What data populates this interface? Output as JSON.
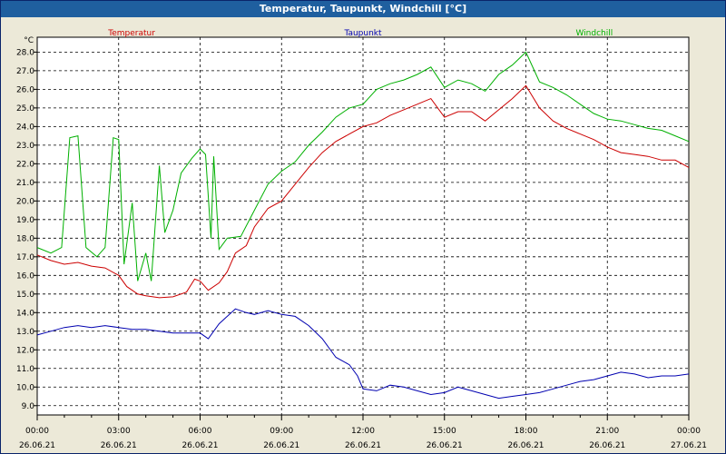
{
  "window": {
    "title": "Temperatur, Taupunkt, Windchill [°C]"
  },
  "chart_data": {
    "type": "line",
    "title": "Temperatur, Taupunkt, Windchill [°C]",
    "ylabel": "°C",
    "ylim": [
      8.5,
      28.8
    ],
    "yticks": [
      9.0,
      10.0,
      11.0,
      12.0,
      13.0,
      14.0,
      15.0,
      16.0,
      17.0,
      18.0,
      19.0,
      20.0,
      21.0,
      22.0,
      23.0,
      24.0,
      25.0,
      26.0,
      27.0,
      28.0
    ],
    "xlim": [
      0,
      24
    ],
    "xticks": [
      {
        "x": 0,
        "time": "00:00",
        "date": "26.06.21"
      },
      {
        "x": 3,
        "time": "03:00",
        "date": "26.06.21"
      },
      {
        "x": 6,
        "time": "06:00",
        "date": "26.06.21"
      },
      {
        "x": 9,
        "time": "09:00",
        "date": "26.06.21"
      },
      {
        "x": 12,
        "time": "12:00",
        "date": "26.06.21"
      },
      {
        "x": 15,
        "time": "15:00",
        "date": "26.06.21"
      },
      {
        "x": 18,
        "time": "18:00",
        "date": "26.06.21"
      },
      {
        "x": 21,
        "time": "21:00",
        "date": "26.06.21"
      },
      {
        "x": 24,
        "time": "00:00",
        "date": "27.06.21"
      }
    ],
    "grid": true,
    "legend": "top",
    "series": [
      {
        "name": "Temperatur",
        "color": "#cc0000",
        "points": [
          [
            0,
            17.1
          ],
          [
            0.5,
            16.8
          ],
          [
            1,
            16.6
          ],
          [
            1.5,
            16.7
          ],
          [
            2,
            16.5
          ],
          [
            2.5,
            16.4
          ],
          [
            3,
            16.0
          ],
          [
            3.3,
            15.4
          ],
          [
            3.7,
            15.0
          ],
          [
            4,
            14.9
          ],
          [
            4.5,
            14.8
          ],
          [
            5,
            14.85
          ],
          [
            5.5,
            15.1
          ],
          [
            5.8,
            15.8
          ],
          [
            6,
            15.7
          ],
          [
            6.3,
            15.2
          ],
          [
            6.7,
            15.6
          ],
          [
            7,
            16.2
          ],
          [
            7.3,
            17.2
          ],
          [
            7.7,
            17.6
          ],
          [
            8,
            18.6
          ],
          [
            8.5,
            19.6
          ],
          [
            9,
            20.0
          ],
          [
            9.5,
            20.9
          ],
          [
            10,
            21.8
          ],
          [
            10.5,
            22.6
          ],
          [
            11,
            23.2
          ],
          [
            11.5,
            23.6
          ],
          [
            12,
            24.0
          ],
          [
            12.5,
            24.2
          ],
          [
            13,
            24.6
          ],
          [
            13.5,
            24.9
          ],
          [
            14,
            25.2
          ],
          [
            14.5,
            25.5
          ],
          [
            15,
            24.5
          ],
          [
            15.5,
            24.8
          ],
          [
            16,
            24.8
          ],
          [
            16.5,
            24.3
          ],
          [
            17,
            24.9
          ],
          [
            17.5,
            25.5
          ],
          [
            18,
            26.2
          ],
          [
            18.5,
            25.0
          ],
          [
            19,
            24.3
          ],
          [
            19.5,
            23.9
          ],
          [
            20,
            23.6
          ],
          [
            20.5,
            23.3
          ],
          [
            21,
            22.9
          ],
          [
            21.5,
            22.6
          ],
          [
            22,
            22.5
          ],
          [
            22.5,
            22.4
          ],
          [
            23,
            22.2
          ],
          [
            23.5,
            22.2
          ],
          [
            24,
            21.8
          ]
        ]
      },
      {
        "name": "Taupunkt",
        "color": "#0000b0",
        "points": [
          [
            0,
            12.8
          ],
          [
            0.5,
            13.0
          ],
          [
            1,
            13.2
          ],
          [
            1.5,
            13.3
          ],
          [
            2,
            13.2
          ],
          [
            2.5,
            13.3
          ],
          [
            3,
            13.2
          ],
          [
            3.5,
            13.1
          ],
          [
            4,
            13.1
          ],
          [
            4.5,
            13.0
          ],
          [
            5,
            12.9
          ],
          [
            5.5,
            12.9
          ],
          [
            6,
            12.9
          ],
          [
            6.3,
            12.6
          ],
          [
            6.7,
            13.4
          ],
          [
            7,
            13.8
          ],
          [
            7.3,
            14.2
          ],
          [
            7.7,
            14.0
          ],
          [
            8,
            13.9
          ],
          [
            8.5,
            14.1
          ],
          [
            9,
            13.9
          ],
          [
            9.5,
            13.8
          ],
          [
            10,
            13.3
          ],
          [
            10.5,
            12.6
          ],
          [
            11,
            11.6
          ],
          [
            11.5,
            11.2
          ],
          [
            11.8,
            10.6
          ],
          [
            12,
            9.9
          ],
          [
            12.5,
            9.8
          ],
          [
            13,
            10.1
          ],
          [
            13.5,
            10.0
          ],
          [
            14,
            9.8
          ],
          [
            14.5,
            9.6
          ],
          [
            15,
            9.7
          ],
          [
            15.5,
            10.0
          ],
          [
            16,
            9.8
          ],
          [
            16.5,
            9.6
          ],
          [
            17,
            9.4
          ],
          [
            17.5,
            9.5
          ],
          [
            18,
            9.6
          ],
          [
            18.5,
            9.7
          ],
          [
            19,
            9.9
          ],
          [
            19.5,
            10.1
          ],
          [
            20,
            10.3
          ],
          [
            20.5,
            10.4
          ],
          [
            21,
            10.6
          ],
          [
            21.5,
            10.8
          ],
          [
            22,
            10.7
          ],
          [
            22.5,
            10.5
          ],
          [
            23,
            10.6
          ],
          [
            23.5,
            10.6
          ],
          [
            24,
            10.7
          ]
        ]
      },
      {
        "name": "Windchill",
        "color": "#00b000",
        "points": [
          [
            0,
            17.5
          ],
          [
            0.5,
            17.2
          ],
          [
            0.9,
            17.5
          ],
          [
            1.2,
            23.4
          ],
          [
            1.5,
            23.5
          ],
          [
            1.8,
            17.5
          ],
          [
            2.2,
            17.0
          ],
          [
            2.5,
            17.5
          ],
          [
            2.8,
            23.4
          ],
          [
            3,
            23.3
          ],
          [
            3.2,
            16.6
          ],
          [
            3.5,
            19.9
          ],
          [
            3.7,
            15.7
          ],
          [
            4,
            17.2
          ],
          [
            4.2,
            15.7
          ],
          [
            4.5,
            21.9
          ],
          [
            4.7,
            18.3
          ],
          [
            5,
            19.5
          ],
          [
            5.3,
            21.5
          ],
          [
            5.7,
            22.3
          ],
          [
            6,
            22.8
          ],
          [
            6.2,
            22.5
          ],
          [
            6.4,
            18.0
          ],
          [
            6.5,
            22.4
          ],
          [
            6.7,
            17.4
          ],
          [
            7,
            18.0
          ],
          [
            7.5,
            18.1
          ],
          [
            8,
            19.5
          ],
          [
            8.5,
            20.9
          ],
          [
            9,
            21.6
          ],
          [
            9.5,
            22.1
          ],
          [
            10,
            23.0
          ],
          [
            10.5,
            23.7
          ],
          [
            11,
            24.5
          ],
          [
            11.5,
            25.0
          ],
          [
            12,
            25.2
          ],
          [
            12.5,
            26.0
          ],
          [
            13,
            26.3
          ],
          [
            13.5,
            26.5
          ],
          [
            14,
            26.8
          ],
          [
            14.5,
            27.2
          ],
          [
            15,
            26.1
          ],
          [
            15.5,
            26.5
          ],
          [
            16,
            26.3
          ],
          [
            16.5,
            25.9
          ],
          [
            17,
            26.8
          ],
          [
            17.5,
            27.3
          ],
          [
            18,
            28.0
          ],
          [
            18.5,
            26.4
          ],
          [
            19,
            26.1
          ],
          [
            19.5,
            25.7
          ],
          [
            20,
            25.2
          ],
          [
            20.5,
            24.7
          ],
          [
            21,
            24.4
          ],
          [
            21.5,
            24.3
          ],
          [
            22,
            24.1
          ],
          [
            22.5,
            23.9
          ],
          [
            23,
            23.8
          ],
          [
            23.5,
            23.5
          ],
          [
            24,
            23.2
          ]
        ]
      }
    ]
  }
}
